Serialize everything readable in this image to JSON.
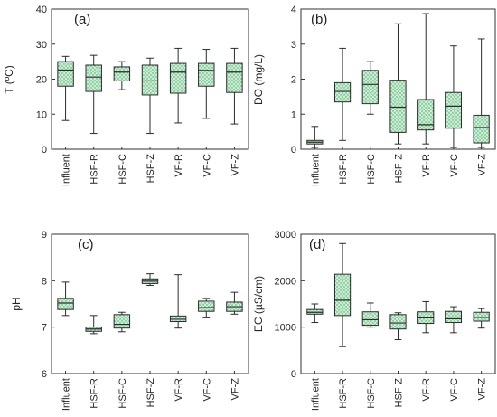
{
  "chart_data": [
    {
      "type": "box",
      "panel_label": "(a)",
      "ylabel": "T (ºC)",
      "ylim": [
        0,
        40
      ],
      "yticks": [
        "0",
        "10",
        "20",
        "30",
        "40"
      ],
      "categories": [
        "Influent",
        "HSF-R",
        "HSF-C",
        "HSF-Z",
        "VF-R",
        "VF-C",
        "VF-Z"
      ],
      "boxes": [
        {
          "min": 8.2,
          "q1": 18.0,
          "median": 22.6,
          "q3": 25.0,
          "max": 26.5
        },
        {
          "min": 4.5,
          "q1": 16.5,
          "median": 20.6,
          "q3": 24.0,
          "max": 26.8
        },
        {
          "min": 17.0,
          "q1": 19.5,
          "median": 22.0,
          "q3": 23.5,
          "max": 25.0
        },
        {
          "min": 4.5,
          "q1": 15.5,
          "median": 19.5,
          "q3": 24.0,
          "max": 26.0
        },
        {
          "min": 7.5,
          "q1": 16.0,
          "median": 22.0,
          "q3": 24.5,
          "max": 28.8
        },
        {
          "min": 8.8,
          "q1": 18.0,
          "median": 22.5,
          "q3": 24.5,
          "max": 28.5
        },
        {
          "min": 7.2,
          "q1": 16.2,
          "median": 22.0,
          "q3": 24.5,
          "max": 28.8
        }
      ]
    },
    {
      "type": "box",
      "panel_label": "(b)",
      "ylabel": "DO (mg/L)",
      "ylim": [
        0,
        4
      ],
      "yticks": [
        "0",
        "1",
        "2",
        "3",
        "4"
      ],
      "categories": [
        "Influent",
        "HSF-R",
        "HSF-C",
        "HSF-Z",
        "VF-R",
        "VF-C",
        "VF-Z"
      ],
      "boxes": [
        {
          "min": 0.05,
          "q1": 0.15,
          "median": 0.2,
          "q3": 0.25,
          "max": 0.65
        },
        {
          "min": 0.25,
          "q1": 1.35,
          "median": 1.65,
          "q3": 1.9,
          "max": 2.88
        },
        {
          "min": 1.0,
          "q1": 1.3,
          "median": 1.85,
          "q3": 2.25,
          "max": 2.5
        },
        {
          "min": 0.15,
          "q1": 0.48,
          "median": 1.2,
          "q3": 1.97,
          "max": 3.58
        },
        {
          "min": 0.15,
          "q1": 0.55,
          "median": 0.7,
          "q3": 1.42,
          "max": 3.87
        },
        {
          "min": 0.05,
          "q1": 0.6,
          "median": 1.23,
          "q3": 1.62,
          "max": 2.95
        },
        {
          "min": 0.05,
          "q1": 0.18,
          "median": 0.62,
          "q3": 0.97,
          "max": 3.15
        }
      ]
    },
    {
      "type": "box",
      "panel_label": "(c)",
      "ylabel": "pH",
      "ylim": [
        6,
        9
      ],
      "yticks": [
        "6",
        "7",
        "8",
        "9"
      ],
      "categories": [
        "Influent",
        "HSF-R",
        "HSF-C",
        "HSF-Z",
        "VF-R",
        "VF-C",
        "VF-Z"
      ],
      "boxes": [
        {
          "min": 7.25,
          "q1": 7.38,
          "median": 7.52,
          "q3": 7.62,
          "max": 7.97
        },
        {
          "min": 6.86,
          "q1": 6.91,
          "median": 6.96,
          "q3": 7.0,
          "max": 7.25
        },
        {
          "min": 6.9,
          "q1": 6.98,
          "median": 7.06,
          "q3": 7.27,
          "max": 7.32
        },
        {
          "min": 7.9,
          "q1": 7.94,
          "median": 7.99,
          "q3": 8.04,
          "max": 8.15
        },
        {
          "min": 6.98,
          "q1": 7.12,
          "median": 7.17,
          "q3": 7.24,
          "max": 8.13
        },
        {
          "min": 7.2,
          "q1": 7.34,
          "median": 7.42,
          "q3": 7.56,
          "max": 7.62
        },
        {
          "min": 7.28,
          "q1": 7.34,
          "median": 7.44,
          "q3": 7.54,
          "max": 7.75
        }
      ]
    },
    {
      "type": "box",
      "panel_label": "(d)",
      "ylabel": "EC (µS/cm)",
      "ylim": [
        0,
        3000
      ],
      "yticks": [
        "0",
        "1000",
        "2000",
        "3000"
      ],
      "categories": [
        "Influent",
        "HSF-R",
        "HSF-C",
        "HSF-Z",
        "VF-R",
        "VF-C",
        "VF-Z"
      ],
      "boxes": [
        {
          "min": 1100,
          "q1": 1280,
          "median": 1320,
          "q3": 1380,
          "max": 1500
        },
        {
          "min": 580,
          "q1": 1250,
          "median": 1580,
          "q3": 2140,
          "max": 2800
        },
        {
          "min": 1000,
          "q1": 1040,
          "median": 1160,
          "q3": 1330,
          "max": 1520
        },
        {
          "min": 730,
          "q1": 960,
          "median": 1090,
          "q3": 1270,
          "max": 1310
        },
        {
          "min": 880,
          "q1": 1080,
          "median": 1200,
          "q3": 1330,
          "max": 1550
        },
        {
          "min": 880,
          "q1": 1100,
          "median": 1180,
          "q3": 1340,
          "max": 1440
        },
        {
          "min": 980,
          "q1": 1130,
          "median": 1210,
          "q3": 1320,
          "max": 1400
        }
      ]
    }
  ],
  "style": {
    "box_fill": "#c9ecd3",
    "box_hatch": "#4aa86a",
    "box_stroke": "#2b2b2b",
    "axis_color": "#333333"
  }
}
